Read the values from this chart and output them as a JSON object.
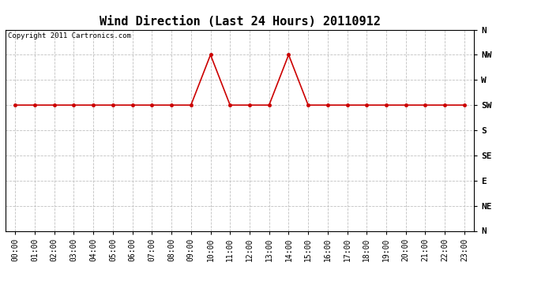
{
  "title": "Wind Direction (Last 24 Hours) 20110912",
  "copyright_text": "Copyright 2011 Cartronics.com",
  "x_labels": [
    "00:00",
    "01:00",
    "02:00",
    "03:00",
    "04:00",
    "05:00",
    "06:00",
    "07:00",
    "08:00",
    "09:00",
    "10:00",
    "11:00",
    "12:00",
    "13:00",
    "14:00",
    "15:00",
    "16:00",
    "17:00",
    "18:00",
    "19:00",
    "20:00",
    "21:00",
    "22:00",
    "23:00"
  ],
  "y_tick_vals": [
    0,
    1,
    2,
    3,
    4,
    5,
    6,
    7,
    8
  ],
  "y_tick_labels": [
    "N",
    "NE",
    "E",
    "SE",
    "S",
    "SW",
    "W",
    "NW",
    "N"
  ],
  "data_hours": [
    0,
    1,
    2,
    3,
    4,
    5,
    6,
    7,
    8,
    9,
    10,
    11,
    12,
    13,
    14,
    15,
    16,
    17,
    18,
    19,
    20,
    21,
    22,
    23
  ],
  "data_dir": [
    5,
    5,
    5,
    5,
    5,
    5,
    5,
    5,
    5,
    5,
    7,
    5,
    5,
    5,
    7,
    5,
    5,
    5,
    5,
    5,
    5,
    5,
    5,
    5
  ],
  "line_color": "#cc0000",
  "marker": "o",
  "marker_size": 3,
  "grid_color": "#c0c0c0",
  "bg_color": "#ffffff",
  "title_fontsize": 11,
  "tick_fontsize": 7,
  "ylabel_fontsize": 8,
  "copyright_fontsize": 6.5
}
